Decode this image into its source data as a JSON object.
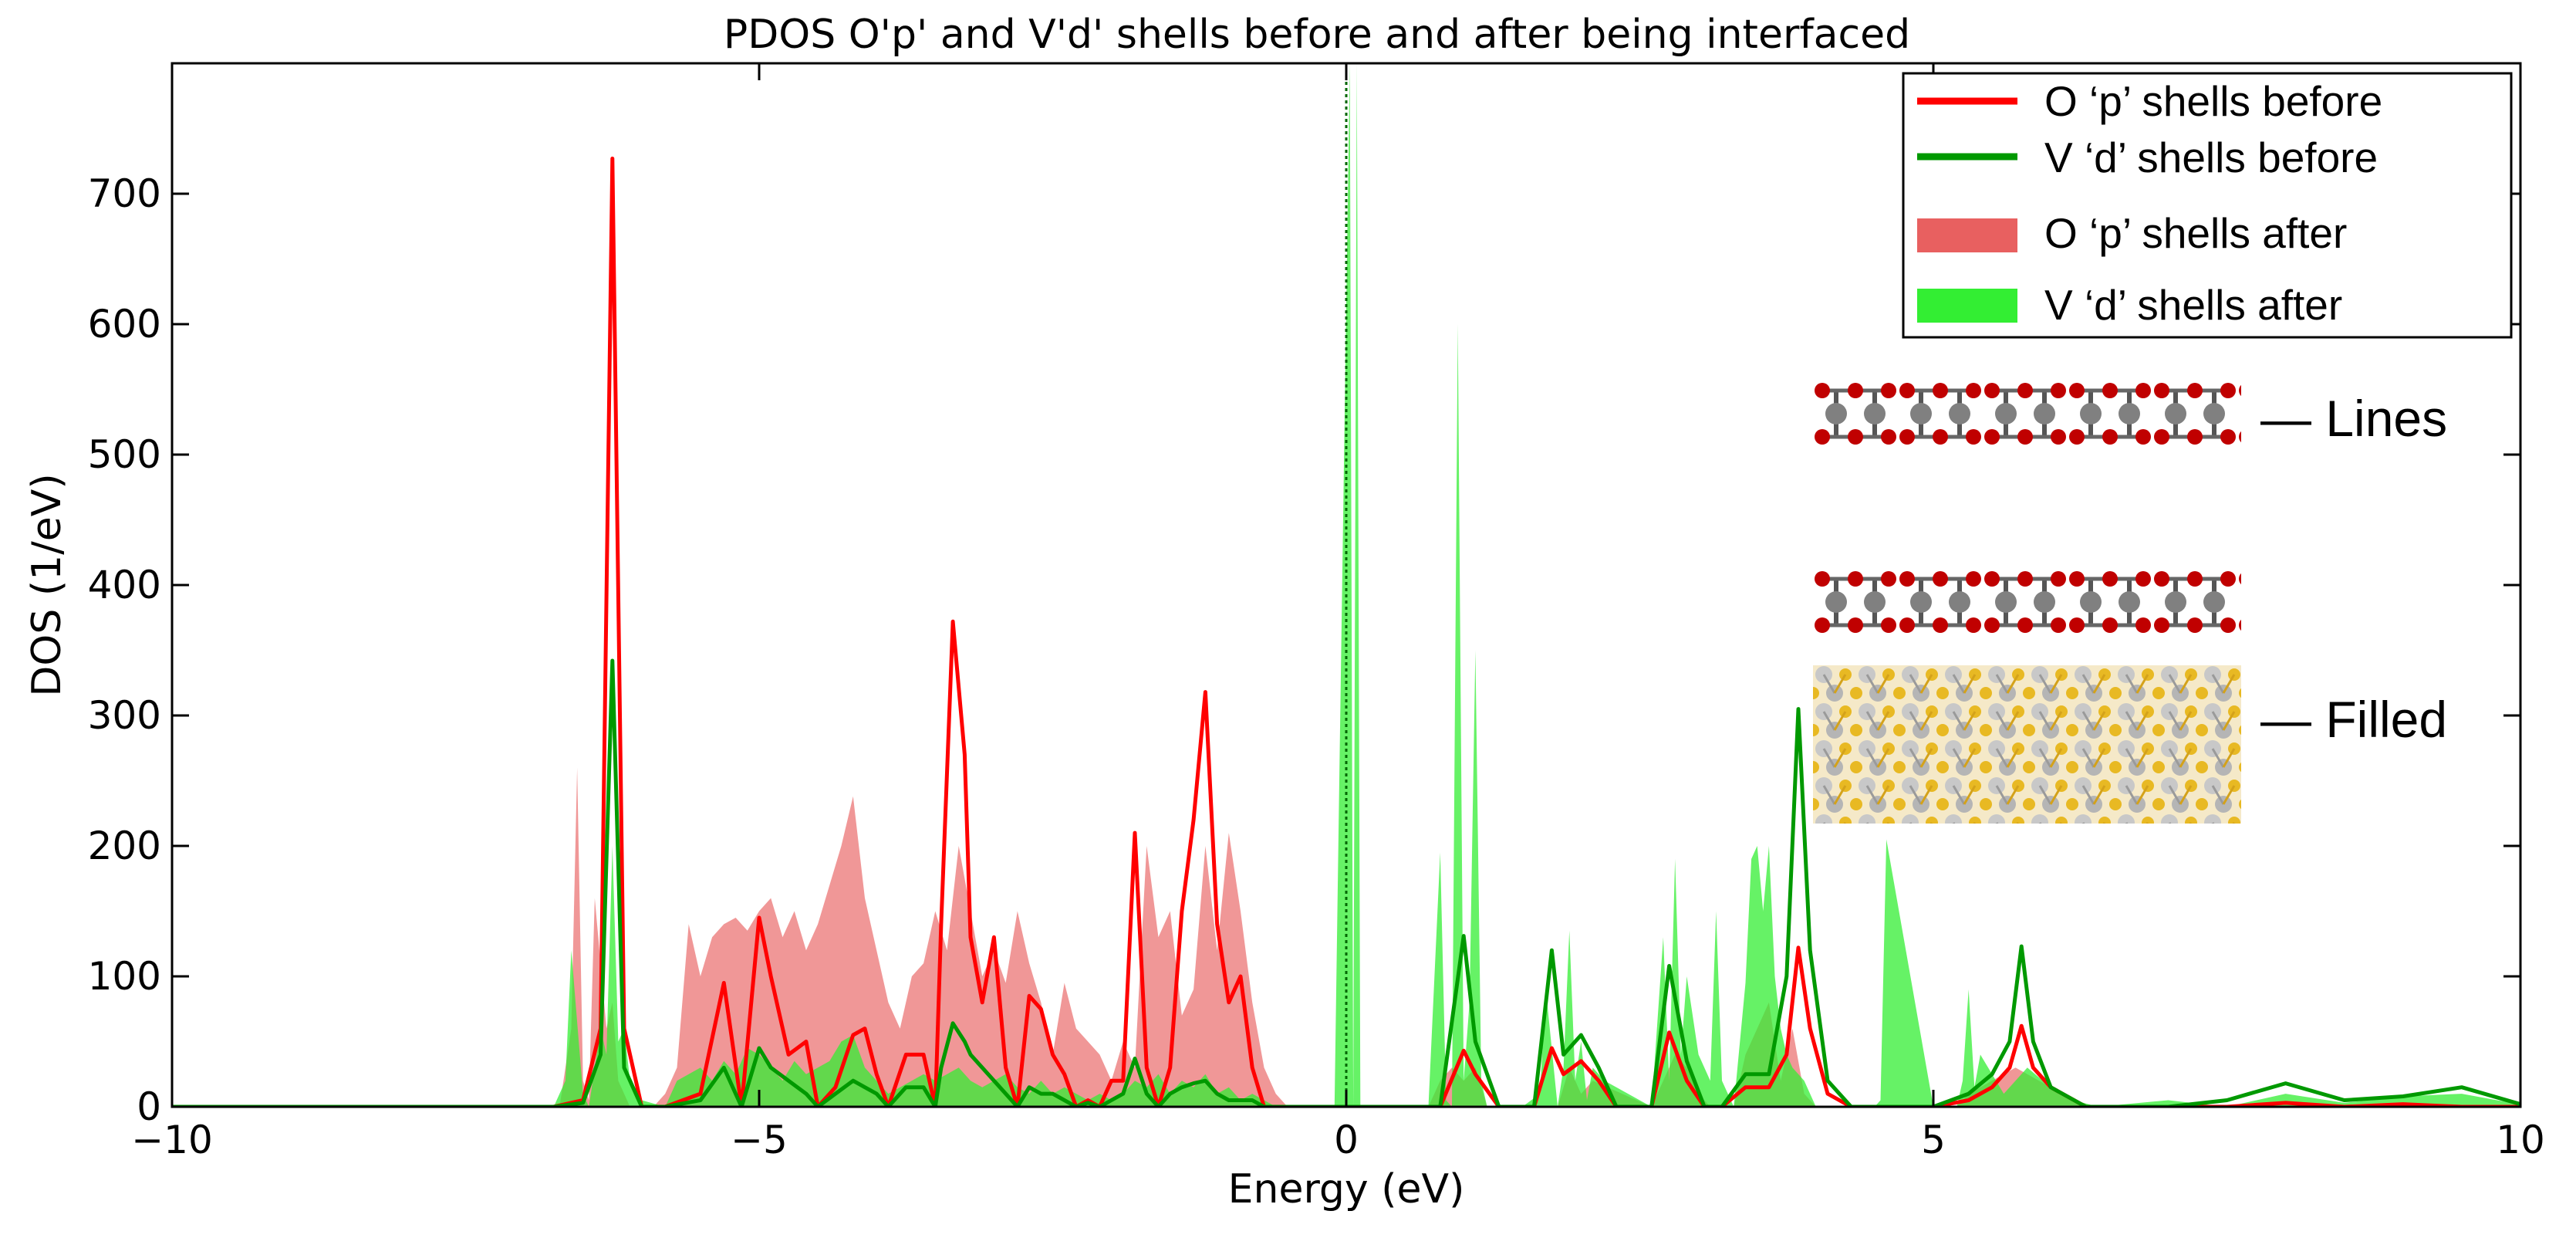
{
  "chart_data": {
    "type": "area",
    "title": "PDOS O'p' and V'd' shells before and after being interfaced",
    "xlabel": "Energy (eV)",
    "ylabel": "DOS (1/eV)",
    "xlim": [
      -10,
      10
    ],
    "ylim": [
      0,
      800
    ],
    "xticks": [
      -10,
      -5,
      0,
      5,
      10
    ],
    "xtick_labels": [
      "−10",
      "−5",
      "0",
      "5",
      "10"
    ],
    "yticks": [
      0,
      100,
      200,
      300,
      400,
      500,
      600,
      700
    ],
    "ytick_labels": [
      "0",
      "100",
      "200",
      "300",
      "400",
      "500",
      "600",
      "700"
    ],
    "grid": false,
    "legend_position": "top-right",
    "fermi_level": 0,
    "series": [
      {
        "name": "O ‘p’ shells before",
        "kind": "line",
        "color": "#ff0000",
        "x": [
          -10,
          -6.75,
          -6.5,
          -6.35,
          -6.25,
          -6.15,
          -6.0,
          -5.8,
          -5.5,
          -5.3,
          -5.15,
          -5.0,
          -4.9,
          -4.75,
          -4.6,
          -4.5,
          -4.35,
          -4.2,
          -4.1,
          -4.0,
          -3.9,
          -3.75,
          -3.6,
          -3.5,
          -3.45,
          -3.35,
          -3.25,
          -3.2,
          -3.1,
          -3.0,
          -2.9,
          -2.8,
          -2.7,
          -2.6,
          -2.5,
          -2.4,
          -2.3,
          -2.2,
          -2.1,
          -2.0,
          -1.9,
          -1.8,
          -1.7,
          -1.6,
          -1.5,
          -1.4,
          -1.3,
          -1.2,
          -1.1,
          -1.0,
          -0.9,
          -0.8,
          -0.7,
          -0.6,
          -0.5,
          -0.4,
          -0.3,
          -0.2,
          -0.1,
          0.0,
          0.8,
          1.0,
          1.1,
          1.3,
          1.6,
          1.75,
          1.85,
          2.0,
          2.15,
          2.3,
          2.6,
          2.75,
          2.9,
          3.05,
          3.2,
          3.4,
          3.6,
          3.75,
          3.85,
          3.95,
          4.1,
          4.3,
          5.0,
          5.3,
          5.5,
          5.65,
          5.75,
          5.85,
          6.0,
          6.3,
          7.0,
          7.5,
          8.0,
          8.5,
          9.0,
          9.5,
          10.0
        ],
        "y": [
          0,
          0,
          5,
          60,
          727,
          60,
          0,
          0,
          10,
          95,
          0,
          145,
          100,
          40,
          50,
          0,
          15,
          55,
          60,
          25,
          0,
          40,
          40,
          0,
          140,
          372,
          270,
          130,
          80,
          130,
          30,
          0,
          85,
          75,
          40,
          25,
          0,
          5,
          0,
          20,
          20,
          210,
          30,
          0,
          30,
          150,
          220,
          318,
          140,
          80,
          100,
          30,
          0,
          0,
          0,
          0,
          0,
          0,
          0,
          0,
          0,
          43,
          25,
          0,
          0,
          45,
          25,
          35,
          20,
          0,
          0,
          57,
          20,
          0,
          0,
          15,
          15,
          40,
          122,
          60,
          10,
          0,
          0,
          5,
          15,
          30,
          62,
          30,
          15,
          0,
          0,
          0,
          3,
          0,
          2,
          0,
          0
        ]
      },
      {
        "name": "V ‘d’ shells before",
        "kind": "line",
        "color": "#009900",
        "x": [
          -10,
          -6.75,
          -6.5,
          -6.35,
          -6.25,
          -6.15,
          -6.0,
          -5.8,
          -5.5,
          -5.3,
          -5.15,
          -5.0,
          -4.9,
          -4.75,
          -4.6,
          -4.5,
          -4.35,
          -4.2,
          -4.1,
          -4.0,
          -3.9,
          -3.75,
          -3.6,
          -3.5,
          -3.45,
          -3.35,
          -3.25,
          -3.2,
          -3.1,
          -3.0,
          -2.9,
          -2.8,
          -2.7,
          -2.6,
          -2.5,
          -2.4,
          -2.3,
          -2.2,
          -2.1,
          -2.0,
          -1.9,
          -1.8,
          -1.7,
          -1.6,
          -1.5,
          -1.4,
          -1.3,
          -1.2,
          -1.1,
          -1.0,
          -0.9,
          -0.8,
          -0.7,
          -0.6,
          -0.5,
          -0.4,
          -0.3,
          -0.2,
          -0.1,
          0.0,
          0.8,
          1.0,
          1.1,
          1.3,
          1.6,
          1.75,
          1.85,
          2.0,
          2.15,
          2.3,
          2.6,
          2.75,
          2.9,
          3.05,
          3.2,
          3.4,
          3.6,
          3.75,
          3.85,
          3.95,
          4.1,
          4.3,
          5.0,
          5.3,
          5.5,
          5.65,
          5.75,
          5.85,
          6.0,
          6.3,
          7.0,
          7.5,
          8.0,
          8.5,
          9.0,
          9.5,
          10.0
        ],
        "y": [
          0,
          0,
          3,
          40,
          342,
          30,
          0,
          0,
          5,
          30,
          0,
          45,
          30,
          20,
          10,
          0,
          10,
          20,
          15,
          10,
          0,
          15,
          15,
          0,
          30,
          64,
          50,
          40,
          30,
          20,
          10,
          0,
          15,
          10,
          10,
          5,
          0,
          3,
          0,
          5,
          10,
          37,
          10,
          0,
          10,
          15,
          18,
          20,
          10,
          5,
          5,
          5,
          0,
          0,
          0,
          0,
          0,
          0,
          0,
          0,
          0,
          131,
          50,
          0,
          0,
          120,
          40,
          55,
          30,
          0,
          0,
          108,
          35,
          0,
          0,
          25,
          25,
          100,
          305,
          120,
          20,
          0,
          0,
          10,
          25,
          50,
          123,
          50,
          15,
          0,
          0,
          5,
          18,
          5,
          8,
          15,
          2
        ]
      },
      {
        "name": "O ‘p’ shells after",
        "kind": "fill",
        "color": "#e86060",
        "opacity": 0.65,
        "x": [
          -10,
          -6.7,
          -6.6,
          -6.55,
          -6.5,
          -6.45,
          -6.4,
          -6.3,
          -6.25,
          -6.2,
          -6.1,
          -6.0,
          -5.9,
          -5.8,
          -5.7,
          -5.6,
          -5.5,
          -5.4,
          -5.3,
          -5.2,
          -5.1,
          -5.0,
          -4.9,
          -4.8,
          -4.7,
          -4.6,
          -4.5,
          -4.4,
          -4.3,
          -4.2,
          -4.1,
          -4.0,
          -3.9,
          -3.8,
          -3.7,
          -3.6,
          -3.5,
          -3.4,
          -3.3,
          -3.2,
          -3.1,
          -3.0,
          -2.9,
          -2.8,
          -2.7,
          -2.6,
          -2.5,
          -2.4,
          -2.3,
          -2.2,
          -2.1,
          -2.0,
          -1.9,
          -1.8,
          -1.7,
          -1.6,
          -1.5,
          -1.4,
          -1.3,
          -1.2,
          -1.1,
          -1.0,
          -0.9,
          -0.8,
          -0.7,
          -0.6,
          -0.5,
          -0.4,
          -0.3,
          -0.2,
          -0.1,
          0.0,
          0.7,
          0.8,
          0.9,
          1.0,
          1.1,
          1.2,
          1.8,
          1.9,
          2.0,
          2.1,
          2.6,
          2.7,
          2.8,
          2.9,
          3.0,
          3.1,
          3.3,
          3.4,
          3.5,
          3.6,
          3.7,
          3.8,
          3.9,
          4.0,
          5.2,
          5.3,
          5.5,
          5.7,
          5.9,
          6.1,
          6.3,
          10.0
        ],
        "y": [
          0,
          0,
          60,
          260,
          20,
          5,
          160,
          60,
          80,
          20,
          0,
          0,
          0,
          10,
          30,
          140,
          100,
          130,
          140,
          145,
          135,
          150,
          160,
          130,
          150,
          120,
          140,
          170,
          200,
          238,
          160,
          120,
          80,
          60,
          100,
          110,
          150,
          120,
          200,
          150,
          100,
          120,
          95,
          150,
          110,
          80,
          40,
          95,
          60,
          50,
          40,
          20,
          50,
          30,
          200,
          130,
          150,
          70,
          90,
          200,
          120,
          210,
          150,
          80,
          30,
          10,
          0,
          0,
          0,
          0,
          0,
          0,
          0,
          20,
          30,
          20,
          30,
          0,
          0,
          30,
          10,
          20,
          0,
          20,
          40,
          30,
          10,
          0,
          0,
          40,
          60,
          80,
          20,
          60,
          10,
          0,
          0,
          10,
          20,
          30,
          20,
          10,
          0,
          0
        ]
      },
      {
        "name": "V ‘d’ shells after",
        "kind": "fill",
        "color": "#33ee33",
        "opacity": 0.75,
        "x": [
          -10,
          -6.75,
          -6.65,
          -6.6,
          -6.5,
          -6.45,
          -6.4,
          -6.35,
          -6.3,
          -6.25,
          -6.2,
          -6.15,
          -6.1,
          -6.0,
          -5.8,
          -5.7,
          -5.6,
          -5.5,
          -5.4,
          -5.3,
          -5.2,
          -5.1,
          -5.0,
          -4.9,
          -4.8,
          -4.7,
          -4.6,
          -4.5,
          -4.4,
          -4.3,
          -4.2,
          -4.1,
          -4.0,
          -3.9,
          -3.8,
          -3.7,
          -3.6,
          -3.5,
          -3.4,
          -3.3,
          -3.2,
          -3.1,
          -3.0,
          -2.9,
          -2.8,
          -2.7,
          -2.6,
          -2.5,
          -2.4,
          -2.3,
          -2.2,
          -2.1,
          -2.0,
          -1.9,
          -1.8,
          -1.7,
          -1.6,
          -1.5,
          -1.4,
          -1.3,
          -1.2,
          -1.1,
          -1.0,
          -0.9,
          -0.8,
          -0.7,
          -0.6,
          -0.5,
          -0.4,
          -0.3,
          -0.1,
          0.03,
          0.06,
          0.09,
          0.12,
          0.15,
          0.7,
          0.8,
          0.85,
          0.9,
          0.95,
          1.0,
          1.05,
          1.1,
          1.15,
          1.2,
          1.25,
          1.5,
          1.65,
          1.7,
          1.8,
          1.85,
          1.9,
          1.95,
          2.0,
          2.05,
          2.1,
          2.2,
          2.6,
          2.7,
          2.75,
          2.8,
          2.85,
          2.9,
          3.0,
          3.1,
          3.15,
          3.2,
          3.3,
          3.4,
          3.45,
          3.5,
          3.55,
          3.6,
          3.65,
          3.7,
          3.75,
          3.8,
          3.9,
          4.0,
          4.1,
          4.3,
          4.5,
          4.55,
          4.6,
          5.0,
          5.2,
          5.25,
          5.3,
          5.35,
          5.4,
          5.6,
          5.8,
          6.0,
          6.2,
          6.4,
          7.0,
          7.5,
          8.0,
          8.5,
          9.0,
          9.5,
          9.8,
          10.0
        ],
        "y": [
          0,
          0,
          20,
          120,
          10,
          0,
          30,
          60,
          40,
          200,
          50,
          60,
          20,
          5,
          0,
          20,
          25,
          30,
          20,
          35,
          25,
          45,
          40,
          30,
          20,
          35,
          25,
          30,
          35,
          50,
          55,
          30,
          20,
          10,
          15,
          20,
          25,
          20,
          25,
          30,
          20,
          15,
          20,
          25,
          15,
          10,
          20,
          10,
          15,
          10,
          5,
          10,
          5,
          10,
          20,
          15,
          25,
          10,
          20,
          15,
          25,
          10,
          15,
          5,
          10,
          5,
          0,
          0,
          0,
          0,
          0,
          800,
          0,
          800,
          0,
          0,
          0,
          195,
          5,
          0,
          600,
          20,
          80,
          350,
          20,
          0,
          0,
          0,
          10,
          90,
          0,
          30,
          135,
          20,
          50,
          5,
          30,
          20,
          0,
          130,
          20,
          190,
          40,
          100,
          40,
          20,
          150,
          20,
          0,
          95,
          190,
          200,
          150,
          200,
          100,
          60,
          40,
          30,
          20,
          0,
          0,
          0,
          0,
          5,
          205,
          0,
          0,
          20,
          90,
          15,
          40,
          10,
          30,
          15,
          5,
          0,
          5,
          0,
          10,
          3,
          8,
          10,
          5,
          2
        ]
      }
    ]
  },
  "inset": {
    "label_lines": "— Lines",
    "label_filled": "— Filled",
    "atom_colors": {
      "oxygen": "#c00000",
      "vanadium": "#7a7a7a",
      "substrate_gold": "#e8b923",
      "substrate_gray": "#c8c8c8"
    }
  }
}
